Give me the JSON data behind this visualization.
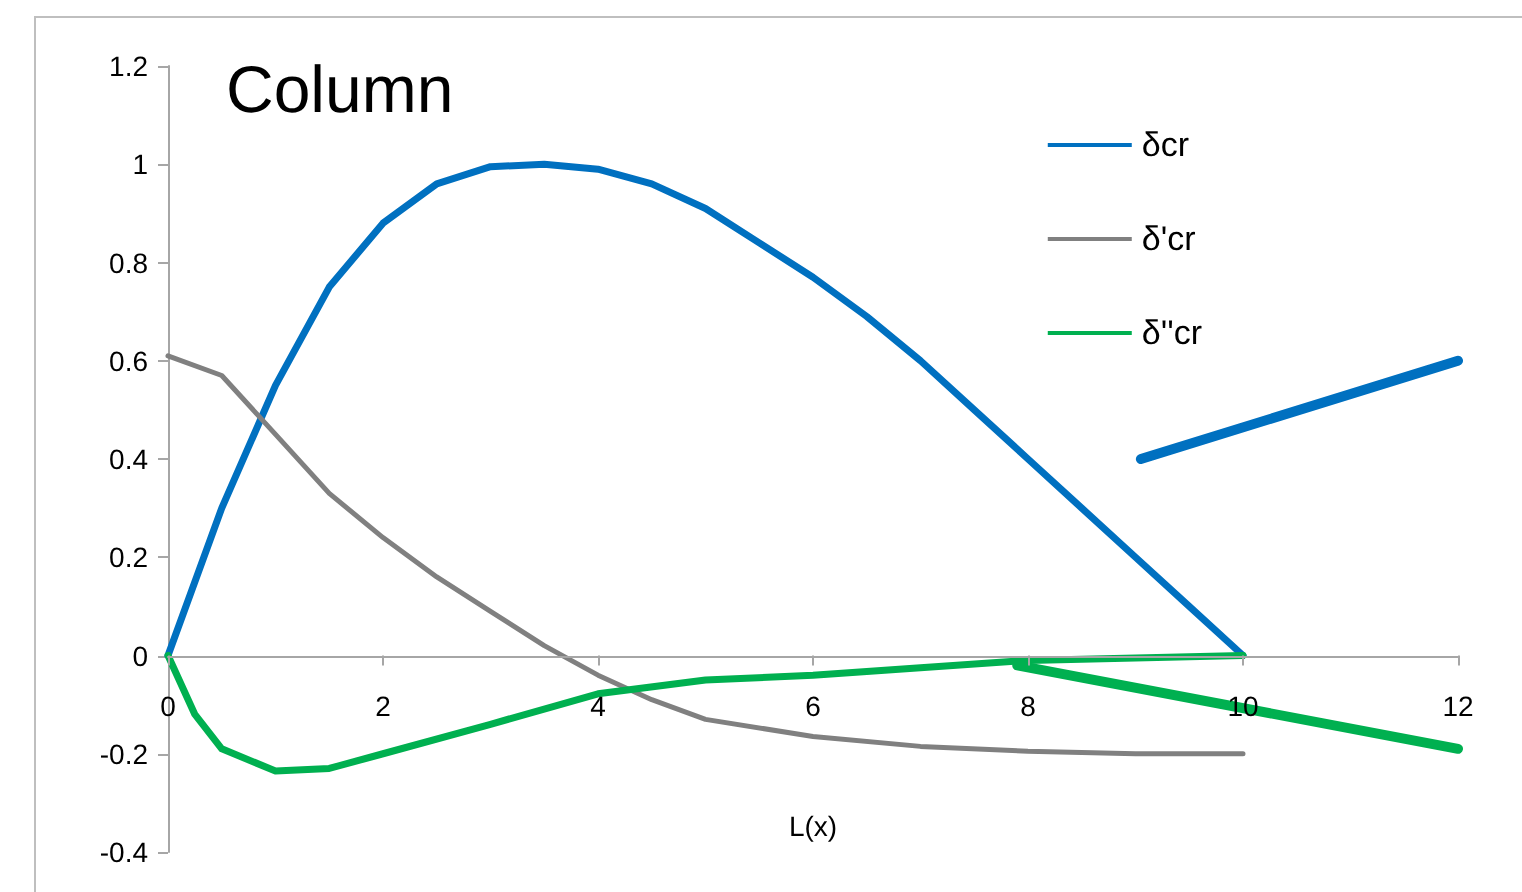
{
  "chart_data": {
    "type": "line",
    "title": "Column",
    "xlabel": "L(x)",
    "xlim": [
      0,
      12
    ],
    "xticks": [
      0,
      2,
      4,
      6,
      8,
      10,
      12
    ],
    "ylim": [
      -0.4,
      1.2
    ],
    "yticks": [
      -0.4,
      -0.2,
      0,
      0.2,
      0.4,
      0.6,
      0.8,
      1,
      1.2
    ],
    "legend": "top right",
    "marker": "none",
    "line_style": "solid",
    "series": [
      {
        "name": "δcr",
        "color": "#0070c0",
        "x": [
          0,
          0.5,
          1,
          1.5,
          2,
          2.5,
          3,
          3.5,
          4,
          4.5,
          5,
          5.5,
          6,
          6.5,
          7,
          7.5,
          8,
          8.5,
          9,
          9.5,
          10
        ],
        "values": [
          0,
          0.3,
          0.55,
          0.75,
          0.88,
          0.96,
          0.995,
          1.0,
          0.99,
          0.96,
          0.91,
          0.84,
          0.77,
          0.69,
          0.6,
          0.5,
          0.4,
          0.3,
          0.2,
          0.1,
          0
        ]
      },
      {
        "name": "δ'cr",
        "color": "#808080",
        "x": [
          0,
          0.5,
          1,
          1.5,
          2,
          2.5,
          3,
          3.5,
          4,
          4.5,
          5,
          6,
          7,
          8,
          9,
          10
        ],
        "values": [
          0.61,
          0.57,
          0.45,
          0.33,
          0.24,
          0.16,
          0.09,
          0.02,
          -0.04,
          -0.09,
          -0.13,
          -0.165,
          -0.185,
          -0.195,
          -0.2,
          -0.2
        ]
      },
      {
        "name": "δ''cr",
        "color": "#00b050",
        "x": [
          0,
          0.25,
          0.5,
          1,
          1.5,
          2,
          3,
          4,
          5,
          6,
          7,
          8,
          9,
          10
        ],
        "values": [
          0,
          -0.12,
          -0.19,
          -0.235,
          -0.23,
          -0.2,
          -0.14,
          -0.078,
          -0.05,
          -0.04,
          -0.025,
          -0.01,
          -0.005,
          0
        ]
      },
      {
        "color": "#0070c0",
        "x": [
          9.05,
          12
        ],
        "values": [
          0.4,
          0.6
        ]
      },
      {
        "color": "#00b050",
        "x": [
          7.9,
          12
        ],
        "values": [
          -0.02,
          -0.19
        ]
      }
    ]
  }
}
